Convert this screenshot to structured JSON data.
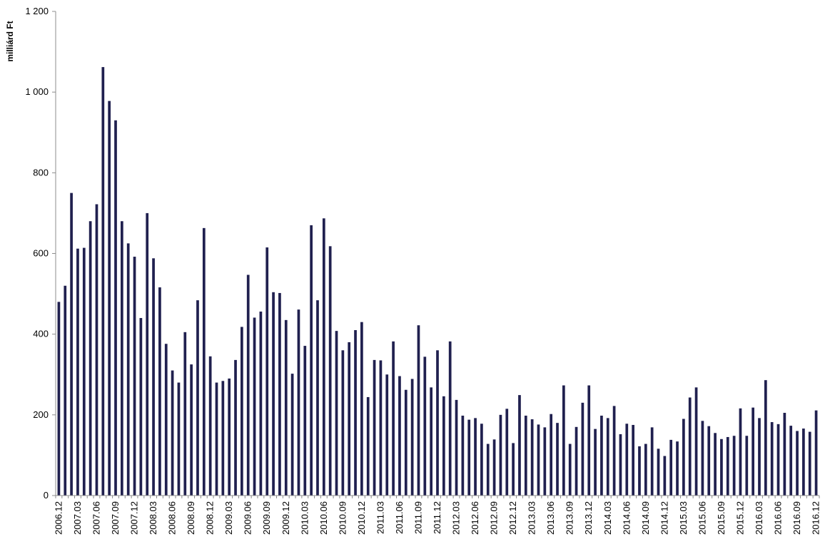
{
  "chart_data": {
    "type": "bar",
    "ylabel": "milliárd Ft",
    "xlabel": "",
    "ylim": [
      0,
      1200
    ],
    "yticks": [
      0,
      200,
      400,
      600,
      800,
      1000,
      1200
    ],
    "ytick_labels": [
      "0",
      "200",
      "400",
      "600",
      "800",
      "1 000",
      "1 200"
    ],
    "grid": false,
    "bar_color": "#20204f",
    "first_period": "2006.12",
    "last_period": "2016.12",
    "tick_labels": [
      "2006.12",
      "2007.03",
      "2007.06",
      "2007.09",
      "2007.12",
      "2008.03",
      "2008.06",
      "2008.09",
      "2008.12",
      "2009.03",
      "2009.06",
      "2009.09",
      "2009.12",
      "2010.03",
      "2010.06",
      "2010.09",
      "2010.12",
      "2011.03",
      "2011.06",
      "2011.09",
      "2011.12",
      "2012.03",
      "2012.06",
      "2012.09",
      "2012.12",
      "2013.03",
      "2013.06",
      "2013.09",
      "2013.12",
      "2014.03",
      "2014.06",
      "2014.09",
      "2014.12",
      "2015.03",
      "2015.06",
      "2015.09",
      "2015.12",
      "2016.03",
      "2016.06",
      "2016.09",
      "2016.12"
    ],
    "values": [
      480,
      520,
      750,
      612,
      614,
      680,
      722,
      1062,
      978,
      930,
      680,
      625,
      592,
      440,
      700,
      588,
      516,
      376,
      310,
      280,
      405,
      325,
      484,
      663,
      345,
      280,
      284,
      290,
      336,
      418,
      547,
      441,
      456,
      615,
      504,
      502,
      435,
      302,
      461,
      371,
      670,
      484,
      687,
      618,
      408,
      360,
      380,
      410,
      430,
      244,
      336,
      335,
      300,
      382,
      296,
      262,
      289,
      422,
      344,
      268,
      360,
      246,
      382,
      237,
      198,
      188,
      192,
      178,
      128,
      139,
      200,
      215,
      130,
      249,
      198,
      189,
      176,
      169,
      202,
      180,
      273,
      128,
      170,
      230,
      273,
      165,
      198,
      192,
      222,
      152,
      178,
      175,
      122,
      128,
      169,
      116,
      98,
      138,
      134,
      190,
      243,
      268,
      185,
      172,
      155,
      140,
      145,
      148,
      216,
      148,
      218,
      192,
      286,
      182,
      177,
      205,
      173,
      160,
      166,
      158,
      211
    ]
  }
}
